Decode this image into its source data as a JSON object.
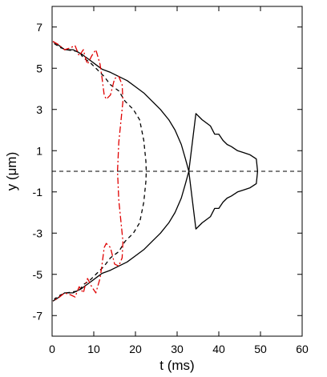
{
  "chart_data": {
    "type": "line",
    "title": "",
    "xlabel": "t (ms)",
    "ylabel": "y (μm)",
    "xlim": [
      0,
      60
    ],
    "ylim": [
      -8,
      8
    ],
    "xticks": [
      0,
      10,
      20,
      30,
      40,
      50,
      60
    ],
    "yticks": [
      -7,
      -5,
      -3,
      -1,
      1,
      3,
      5,
      7
    ],
    "grid": false,
    "legend": "none",
    "reference_line": {
      "y": 0,
      "style": "dashed",
      "color": "#000000"
    },
    "series": [
      {
        "color": "#000000",
        "style": "solid",
        "points": [
          [
            0.2,
            6.3
          ],
          [
            1.0,
            6.2
          ],
          [
            2.0,
            6.05
          ],
          [
            3.0,
            5.9
          ],
          [
            5.0,
            5.9
          ],
          [
            7.0,
            5.7
          ],
          [
            8.0,
            5.55
          ],
          [
            9.0,
            5.4
          ],
          [
            11.0,
            5.1
          ],
          [
            12.0,
            4.95
          ],
          [
            14.0,
            4.8
          ],
          [
            16.0,
            4.6
          ],
          [
            18.0,
            4.4
          ],
          [
            20.0,
            4.1
          ],
          [
            22.0,
            3.8
          ],
          [
            24.0,
            3.4
          ],
          [
            26.0,
            3.0
          ],
          [
            28.0,
            2.5
          ],
          [
            29.5,
            2.0
          ],
          [
            31.0,
            1.3
          ],
          [
            32.0,
            0.6
          ],
          [
            32.8,
            0.0
          ],
          [
            32.0,
            -0.6
          ],
          [
            31.0,
            -1.3
          ],
          [
            29.5,
            -2.0
          ],
          [
            28.0,
            -2.5
          ],
          [
            26.0,
            -3.0
          ],
          [
            24.0,
            -3.4
          ],
          [
            22.0,
            -3.8
          ],
          [
            20.0,
            -4.1
          ],
          [
            18.0,
            -4.4
          ],
          [
            16.0,
            -4.6
          ],
          [
            14.0,
            -4.8
          ],
          [
            12.0,
            -4.95
          ],
          [
            11.0,
            -5.1
          ],
          [
            9.0,
            -5.4
          ],
          [
            8.0,
            -5.55
          ],
          [
            7.0,
            -5.7
          ],
          [
            5.0,
            -5.9
          ],
          [
            3.0,
            -5.9
          ],
          [
            2.0,
            -6.05
          ],
          [
            1.0,
            -6.2
          ],
          [
            0.2,
            -6.3
          ]
        ]
      },
      {
        "color": "#000000",
        "style": "solid",
        "points": [
          [
            32.8,
            0.0
          ],
          [
            34.5,
            2.8
          ],
          [
            36.0,
            2.5
          ],
          [
            38.0,
            2.2
          ],
          [
            39.0,
            1.8
          ],
          [
            40.0,
            1.8
          ],
          [
            41.0,
            1.5
          ],
          [
            42.0,
            1.3
          ],
          [
            43.0,
            1.2
          ],
          [
            44.5,
            1.0
          ],
          [
            46.0,
            0.9
          ],
          [
            47.5,
            0.8
          ],
          [
            49.0,
            0.6
          ],
          [
            49.3,
            0.0
          ],
          [
            49.0,
            -0.6
          ],
          [
            47.5,
            -0.8
          ],
          [
            46.0,
            -0.9
          ],
          [
            44.5,
            -1.0
          ],
          [
            43.0,
            -1.2
          ],
          [
            42.0,
            -1.3
          ],
          [
            41.0,
            -1.5
          ],
          [
            40.0,
            -1.8
          ],
          [
            39.0,
            -1.8
          ],
          [
            38.0,
            -2.2
          ],
          [
            36.0,
            -2.5
          ],
          [
            34.5,
            -2.8
          ],
          [
            32.8,
            0.0
          ]
        ]
      },
      {
        "color": "#000000",
        "style": "dashed",
        "points": [
          [
            0.5,
            6.2
          ],
          [
            2.0,
            6.0
          ],
          [
            3.5,
            5.9
          ],
          [
            5.0,
            5.85
          ],
          [
            6.5,
            5.8
          ],
          [
            7.5,
            5.5
          ],
          [
            9.0,
            5.3
          ],
          [
            11.0,
            4.9
          ],
          [
            12.5,
            4.6
          ],
          [
            14.0,
            4.2
          ],
          [
            16.0,
            3.9
          ],
          [
            17.5,
            3.4
          ],
          [
            19.5,
            3.0
          ],
          [
            21.0,
            2.5
          ],
          [
            22.0,
            1.5
          ],
          [
            22.5,
            0.5
          ],
          [
            22.6,
            0.0
          ],
          [
            22.5,
            -0.5
          ],
          [
            22.0,
            -1.5
          ],
          [
            21.0,
            -2.5
          ],
          [
            19.5,
            -3.0
          ],
          [
            17.5,
            -3.4
          ],
          [
            16.0,
            -3.9
          ],
          [
            14.0,
            -4.2
          ],
          [
            12.5,
            -4.6
          ],
          [
            11.0,
            -4.9
          ],
          [
            9.0,
            -5.3
          ],
          [
            7.5,
            -5.5
          ],
          [
            6.5,
            -5.8
          ],
          [
            5.0,
            -5.85
          ],
          [
            3.5,
            -5.9
          ],
          [
            2.0,
            -6.0
          ],
          [
            0.5,
            -6.2
          ]
        ]
      },
      {
        "color": "#e00000",
        "style": "dashdot",
        "points": [
          [
            0.2,
            6.3
          ],
          [
            1.5,
            6.15
          ],
          [
            3.0,
            5.9
          ],
          [
            4.5,
            6.0
          ],
          [
            5.5,
            6.1
          ],
          [
            6.5,
            5.6
          ],
          [
            7.5,
            5.9
          ],
          [
            8.0,
            5.5
          ],
          [
            8.5,
            5.2
          ],
          [
            9.5,
            5.6
          ],
          [
            10.5,
            5.9
          ],
          [
            11.5,
            5.2
          ],
          [
            12.0,
            4.5
          ],
          [
            12.5,
            3.7
          ],
          [
            13.0,
            3.5
          ],
          [
            14.0,
            3.7
          ],
          [
            15.0,
            4.5
          ],
          [
            16.0,
            4.6
          ],
          [
            16.8,
            4.2
          ],
          [
            17.0,
            3.4
          ],
          [
            16.5,
            2.4
          ],
          [
            16.0,
            1.4
          ],
          [
            15.8,
            0.5
          ],
          [
            15.7,
            0.0
          ],
          [
            15.8,
            -0.5
          ],
          [
            16.0,
            -1.4
          ],
          [
            16.5,
            -2.4
          ],
          [
            17.0,
            -3.4
          ],
          [
            16.8,
            -4.2
          ],
          [
            16.0,
            -4.6
          ],
          [
            15.0,
            -4.5
          ],
          [
            14.0,
            -3.7
          ],
          [
            13.0,
            -3.5
          ],
          [
            12.5,
            -3.7
          ],
          [
            12.0,
            -4.5
          ],
          [
            11.5,
            -5.2
          ],
          [
            10.5,
            -5.9
          ],
          [
            9.5,
            -5.6
          ],
          [
            8.5,
            -5.2
          ],
          [
            8.0,
            -5.5
          ],
          [
            7.5,
            -5.9
          ],
          [
            6.5,
            -5.6
          ],
          [
            5.5,
            -6.1
          ],
          [
            4.5,
            -6.0
          ],
          [
            3.0,
            -5.9
          ],
          [
            1.5,
            -6.15
          ],
          [
            0.2,
            -6.3
          ]
        ]
      }
    ]
  }
}
